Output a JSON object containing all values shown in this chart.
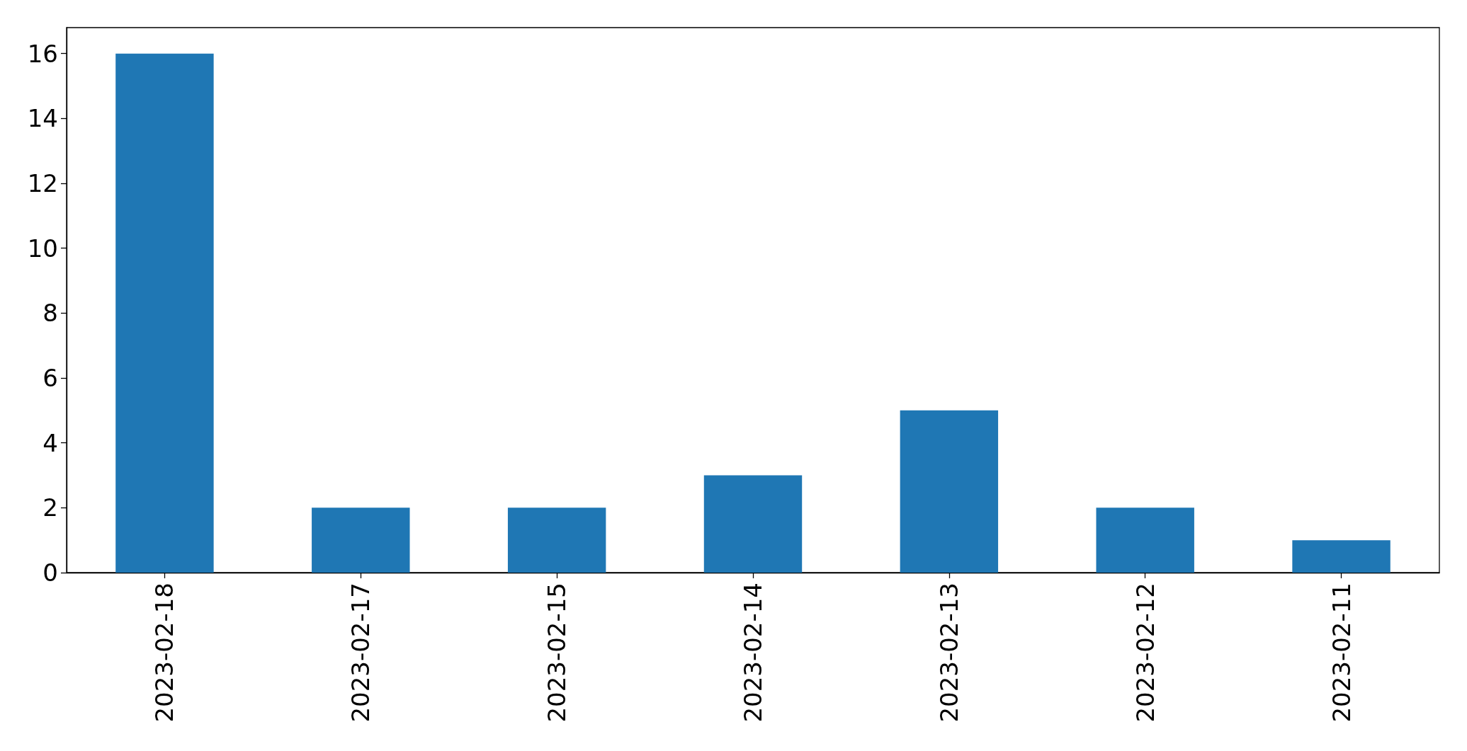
{
  "chart_data": {
    "type": "bar",
    "categories": [
      "2023-02-18",
      "2023-02-17",
      "2023-02-15",
      "2023-02-14",
      "2023-02-13",
      "2023-02-12",
      "2023-02-11"
    ],
    "values": [
      16,
      2,
      2,
      3,
      5,
      2,
      1
    ],
    "color": "#1f77b4",
    "ylim": [
      0,
      16.8
    ],
    "yticks": [
      0,
      2,
      4,
      6,
      8,
      10,
      12,
      14,
      16
    ]
  }
}
